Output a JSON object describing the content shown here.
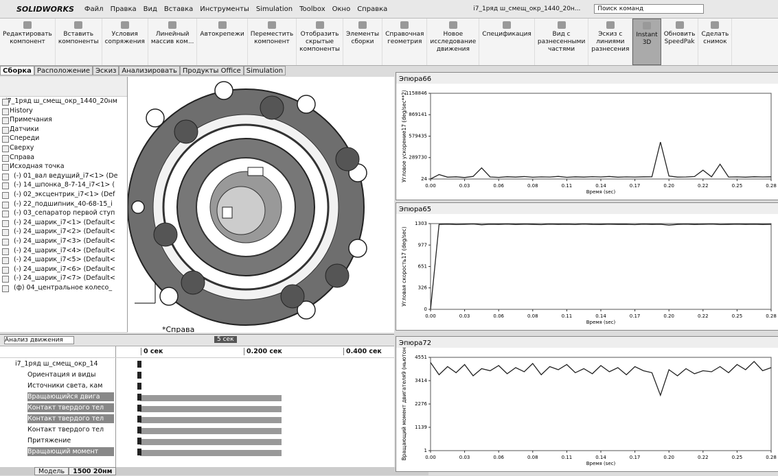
{
  "app": {
    "logo": "SOLIDWORKS",
    "menu": [
      "Файл",
      "Правка",
      "Вид",
      "Вставка",
      "Инструменты",
      "Simulation",
      "Toolbox",
      "Окно",
      "Справка"
    ],
    "document": "i7_1ряд ш_смещ_окр_1440_20н...",
    "search": "Поиск команд"
  },
  "toolbar": [
    "Редактировать\nкомпонент",
    "Вставить\nкомпоненты",
    "Условия\nсопряжения",
    "Линейный\nмассив ком...",
    "Автокрепежи",
    "Переместить\nкомпонент",
    "Отобразить\nскрытые\nкомпоненты",
    "Элементы\nсборки",
    "Справочная\nгеометрия",
    "Новое\nисследование\nдвижения",
    "Спецификация",
    "Вид с\nразнесенными\nчастями",
    "Эскиз с\nлиниями\nразнесения",
    "Instant\n3D",
    "Обновить\nSpeedPak",
    "Сделать\nснимок"
  ],
  "tabs": [
    "Сборка",
    "Расположение",
    "Эскиз",
    "Анализировать",
    "Продукты Office",
    "Simulation"
  ],
  "tree": [
    "i7_1ряд ш_смещ_окр_1440_20нм",
    "History",
    "Примечания",
    "Датчики",
    "Спереди",
    "Сверху",
    "Справа",
    "Исходная точка",
    "(-) 01_вал ведущий_i7<1> (De",
    "(-) 14_шпонка_8-7-14_i7<1> (",
    "(-) 02_эксцентрик_i7<1> (Def",
    "(-) 22_подшипник_40-68-15_i",
    "(-) 03_сепаратор первой ступ",
    "(-) 24_шарик_i7<1> (Default<",
    "(-) 24_шарик_i7<2> (Default<",
    "(-) 24_шарик_i7<3> (Default<",
    "(-) 24_шарик_i7<4> (Default<",
    "(-) 24_шарик_i7<5> (Default<",
    "(-) 24_шарик_i7<6> (Default<",
    "(-) 24_шарик_i7<7> (Default<",
    "(ф) 04_центральное колесо_"
  ],
  "view_label": "*Справа",
  "motion": {
    "mode": "Анализ движения",
    "duration": "5 сек",
    "times": [
      "0 сек",
      "0.200 сек",
      "0.400 сек"
    ],
    "tree": [
      "i7_1ряд ш_смещ_окр_14",
      "Ориентация и виды",
      "Источники света, кам",
      "Вращающийся двига",
      "Контакт твердого тел",
      "Контакт твердого тел",
      "Контакт твердого тел",
      "Притяжение",
      "Вращающий момент"
    ]
  },
  "bottom_tabs": [
    "Модель",
    "1500 20нм"
  ],
  "plots": [
    {
      "title": "Эпюра66",
      "ylabel": "Угловое ускорение17 (deg/sec**2)",
      "xlabel": "Время (sec)",
      "xlim": [
        0,
        0.28
      ],
      "ylim": [
        24,
        1158846
      ],
      "xticks": [
        {
          "value": 0,
          "label": "0.00"
        },
        {
          "value": 0.028,
          "label": "0.03"
        },
        {
          "value": 0.056,
          "label": "0.06"
        },
        {
          "value": 0.084,
          "label": "0.08"
        },
        {
          "value": 0.112,
          "label": "0.11"
        },
        {
          "value": 0.14,
          "label": "0.14"
        },
        {
          "value": 0.168,
          "label": "0.17"
        },
        {
          "value": 0.196,
          "label": "0.20"
        },
        {
          "value": 0.224,
          "label": "0.22"
        },
        {
          "value": 0.252,
          "label": "0.25"
        },
        {
          "value": 0.28,
          "label": "0.28"
        }
      ],
      "yticks": [
        24,
        289730,
        579435,
        869141,
        1158846
      ],
      "x": [
        0,
        0.007,
        0.014,
        0.021,
        0.028,
        0.035,
        0.042,
        0.049,
        0.056,
        0.063,
        0.07,
        0.077,
        0.084,
        0.091,
        0.098,
        0.105,
        0.112,
        0.119,
        0.126,
        0.133,
        0.14,
        0.147,
        0.154,
        0.161,
        0.168,
        0.175,
        0.182,
        0.189,
        0.196,
        0.203,
        0.21,
        0.217,
        0.224,
        0.231,
        0.238,
        0.245,
        0.252,
        0.259,
        0.266,
        0.273,
        0.28
      ],
      "values": [
        24,
        60000,
        25000,
        30000,
        20000,
        35000,
        150000,
        28000,
        22000,
        31000,
        26000,
        33000,
        24000,
        29000,
        27000,
        35000,
        23000,
        30000,
        26000,
        32000,
        28000,
        34000,
        25000,
        29000,
        27000,
        30000,
        31000,
        500000,
        40000,
        26000,
        28000,
        33000,
        120000,
        30000,
        200000,
        27000,
        29000,
        25000,
        31000,
        28000,
        30000
      ]
    },
    {
      "title": "Эпюра65",
      "ylabel": "Угловая скорость17 (deg/sec)",
      "xlabel": "Время (sec)",
      "xlim": [
        0,
        0.28
      ],
      "ylim": [
        0,
        1303
      ],
      "xticks": [
        {
          "value": 0,
          "label": "0.00"
        },
        {
          "value": 0.028,
          "label": "0.03"
        },
        {
          "value": 0.056,
          "label": "0.06"
        },
        {
          "value": 0.084,
          "label": "0.08"
        },
        {
          "value": 0.112,
          "label": "0.11"
        },
        {
          "value": 0.14,
          "label": "0.14"
        },
        {
          "value": 0.168,
          "label": "0.17"
        },
        {
          "value": 0.196,
          "label": "0.20"
        },
        {
          "value": 0.224,
          "label": "0.22"
        },
        {
          "value": 0.252,
          "label": "0.25"
        },
        {
          "value": 0.28,
          "label": "0.28"
        }
      ],
      "yticks": [
        0,
        326,
        651,
        977,
        1303
      ],
      "x": [
        0,
        0.007,
        0.014,
        0.021,
        0.028,
        0.035,
        0.042,
        0.049,
        0.056,
        0.063,
        0.07,
        0.077,
        0.084,
        0.091,
        0.098,
        0.105,
        0.112,
        0.119,
        0.126,
        0.133,
        0.14,
        0.147,
        0.154,
        0.161,
        0.168,
        0.175,
        0.182,
        0.189,
        0.196,
        0.203,
        0.21,
        0.217,
        0.224,
        0.231,
        0.238,
        0.245,
        0.252,
        0.259,
        0.266,
        0.273,
        0.28
      ],
      "values": [
        0,
        1290,
        1295,
        1288,
        1292,
        1297,
        1285,
        1293,
        1290,
        1296,
        1289,
        1294,
        1291,
        1287,
        1295,
        1290,
        1293,
        1288,
        1296,
        1291,
        1289,
        1294,
        1290,
        1292,
        1287,
        1295,
        1291,
        1293,
        1280,
        1290,
        1294,
        1289,
        1292,
        1296,
        1288,
        1291,
        1295,
        1290,
        1293,
        1289,
        1292
      ]
    },
    {
      "title": "Эпюра72",
      "ylabel": "Вращающий момент двигателя9 (ньютон",
      "xlabel": "Время (sec)",
      "xlim": [
        0,
        0.28
      ],
      "ylim": [
        1,
        4551
      ],
      "xticks": [
        {
          "value": 0,
          "label": "0.00"
        },
        {
          "value": 0.028,
          "label": "0.03"
        },
        {
          "value": 0.056,
          "label": "0.06"
        },
        {
          "value": 0.084,
          "label": "0.08"
        },
        {
          "value": 0.112,
          "label": "0.11"
        },
        {
          "value": 0.14,
          "label": "0.14"
        },
        {
          "value": 0.168,
          "label": "0.17"
        },
        {
          "value": 0.196,
          "label": "0.20"
        },
        {
          "value": 0.224,
          "label": "0.22"
        },
        {
          "value": 0.252,
          "label": "0.25"
        },
        {
          "value": 0.28,
          "label": "0.28"
        }
      ],
      "yticks": [
        1,
        1139,
        2276,
        3414,
        4551
      ],
      "x": [
        0,
        0.007,
        0.014,
        0.021,
        0.028,
        0.035,
        0.042,
        0.049,
        0.056,
        0.063,
        0.07,
        0.077,
        0.084,
        0.091,
        0.098,
        0.105,
        0.112,
        0.119,
        0.126,
        0.133,
        0.14,
        0.147,
        0.154,
        0.161,
        0.168,
        0.175,
        0.182,
        0.189,
        0.196,
        0.203,
        0.21,
        0.217,
        0.224,
        0.231,
        0.238,
        0.245,
        0.252,
        0.259,
        0.266,
        0.273,
        0.28
      ],
      "values": [
        4300,
        3700,
        4100,
        3800,
        4200,
        3650,
        4000,
        3900,
        4150,
        3750,
        4050,
        3850,
        4250,
        3700,
        4100,
        3950,
        4200,
        3800,
        4000,
        3750,
        4150,
        3850,
        4050,
        3700,
        4100,
        3900,
        3800,
        2700,
        3950,
        3650,
        4000,
        3750,
        3900,
        3850,
        4100,
        3800,
        4200,
        3950,
        4350,
        3900,
        4050
      ]
    }
  ]
}
